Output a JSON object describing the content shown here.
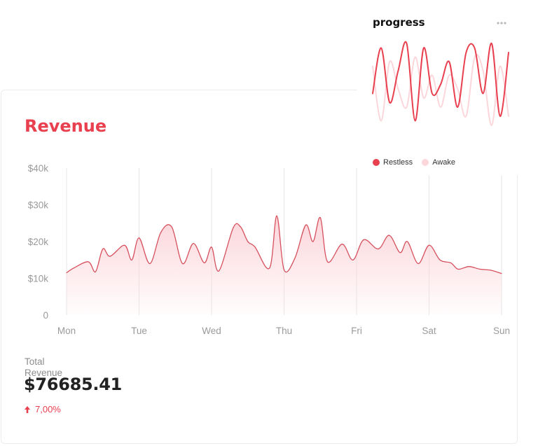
{
  "revenue_card": {
    "title": "Revenue",
    "total_label": "Total Revenue",
    "total_value": "$76685.41",
    "change": "7,00%",
    "colors": {
      "accent": "#e8404f",
      "line": "#d6505d",
      "fill_top": "#fbd3d8"
    }
  },
  "progress_panel": {
    "title": "progress",
    "menu_icon": "more-horizontal-icon",
    "legend": [
      {
        "label": "Restless",
        "color": "#e8404f"
      },
      {
        "label": "Awake",
        "color": "#fbd7dc"
      }
    ]
  },
  "chart_data": [
    {
      "type": "area",
      "title": "Revenue",
      "categories": [
        "Mon",
        "Tue",
        "Wed",
        "Thu",
        "Fri",
        "Sat",
        "Sun"
      ],
      "yticks": [
        "0",
        "$10k",
        "$20k",
        "$30k",
        "$40k"
      ],
      "ylim": [
        0,
        40000
      ],
      "grid": "vertical",
      "x": [
        0,
        0.1,
        0.3,
        0.4,
        0.5,
        0.6,
        0.8,
        0.9,
        1,
        1.15,
        1.3,
        1.45,
        1.6,
        1.75,
        1.9,
        2,
        2.1,
        2.3,
        2.4,
        2.5,
        2.6,
        2.8,
        2.9,
        3,
        3.15,
        3.3,
        3.4,
        3.5,
        3.6,
        3.8,
        3.95,
        4.1,
        4.3,
        4.45,
        4.6,
        4.7,
        4.85,
        5,
        5.15,
        5.3,
        5.4,
        5.55,
        5.7,
        5.85,
        6
      ],
      "values": [
        11500,
        12800,
        14500,
        11800,
        18000,
        16000,
        19000,
        15000,
        21000,
        14000,
        22500,
        24000,
        14000,
        19500,
        14200,
        18500,
        12000,
        23800,
        24000,
        20000,
        18500,
        12800,
        27000,
        12300,
        15500,
        24500,
        20000,
        26500,
        14500,
        19300,
        15000,
        20500,
        18000,
        21700,
        17000,
        20000,
        14000,
        19000,
        15000,
        14200,
        12500,
        13200,
        12500,
        12200,
        11300
      ]
    },
    {
      "type": "line",
      "title": "progress",
      "x": [
        0,
        1,
        2,
        3,
        4,
        5,
        6,
        7,
        8,
        9,
        10,
        11,
        12,
        13,
        14,
        15,
        16
      ],
      "series": [
        {
          "name": "Restless",
          "values": [
            0.45,
            0.95,
            0.35,
            0.7,
            1.0,
            0.15,
            0.95,
            0.45,
            0.55,
            0.8,
            0.3,
            0.9,
            0.95,
            0.45,
            1.0,
            0.2,
            0.9
          ]
        },
        {
          "name": "Awake",
          "values": [
            0.75,
            0.15,
            0.8,
            0.5,
            0.3,
            0.85,
            0.4,
            0.65,
            0.3,
            0.65,
            0.5,
            0.2,
            0.85,
            0.7,
            0.1,
            0.75,
            0.2
          ]
        }
      ]
    }
  ]
}
